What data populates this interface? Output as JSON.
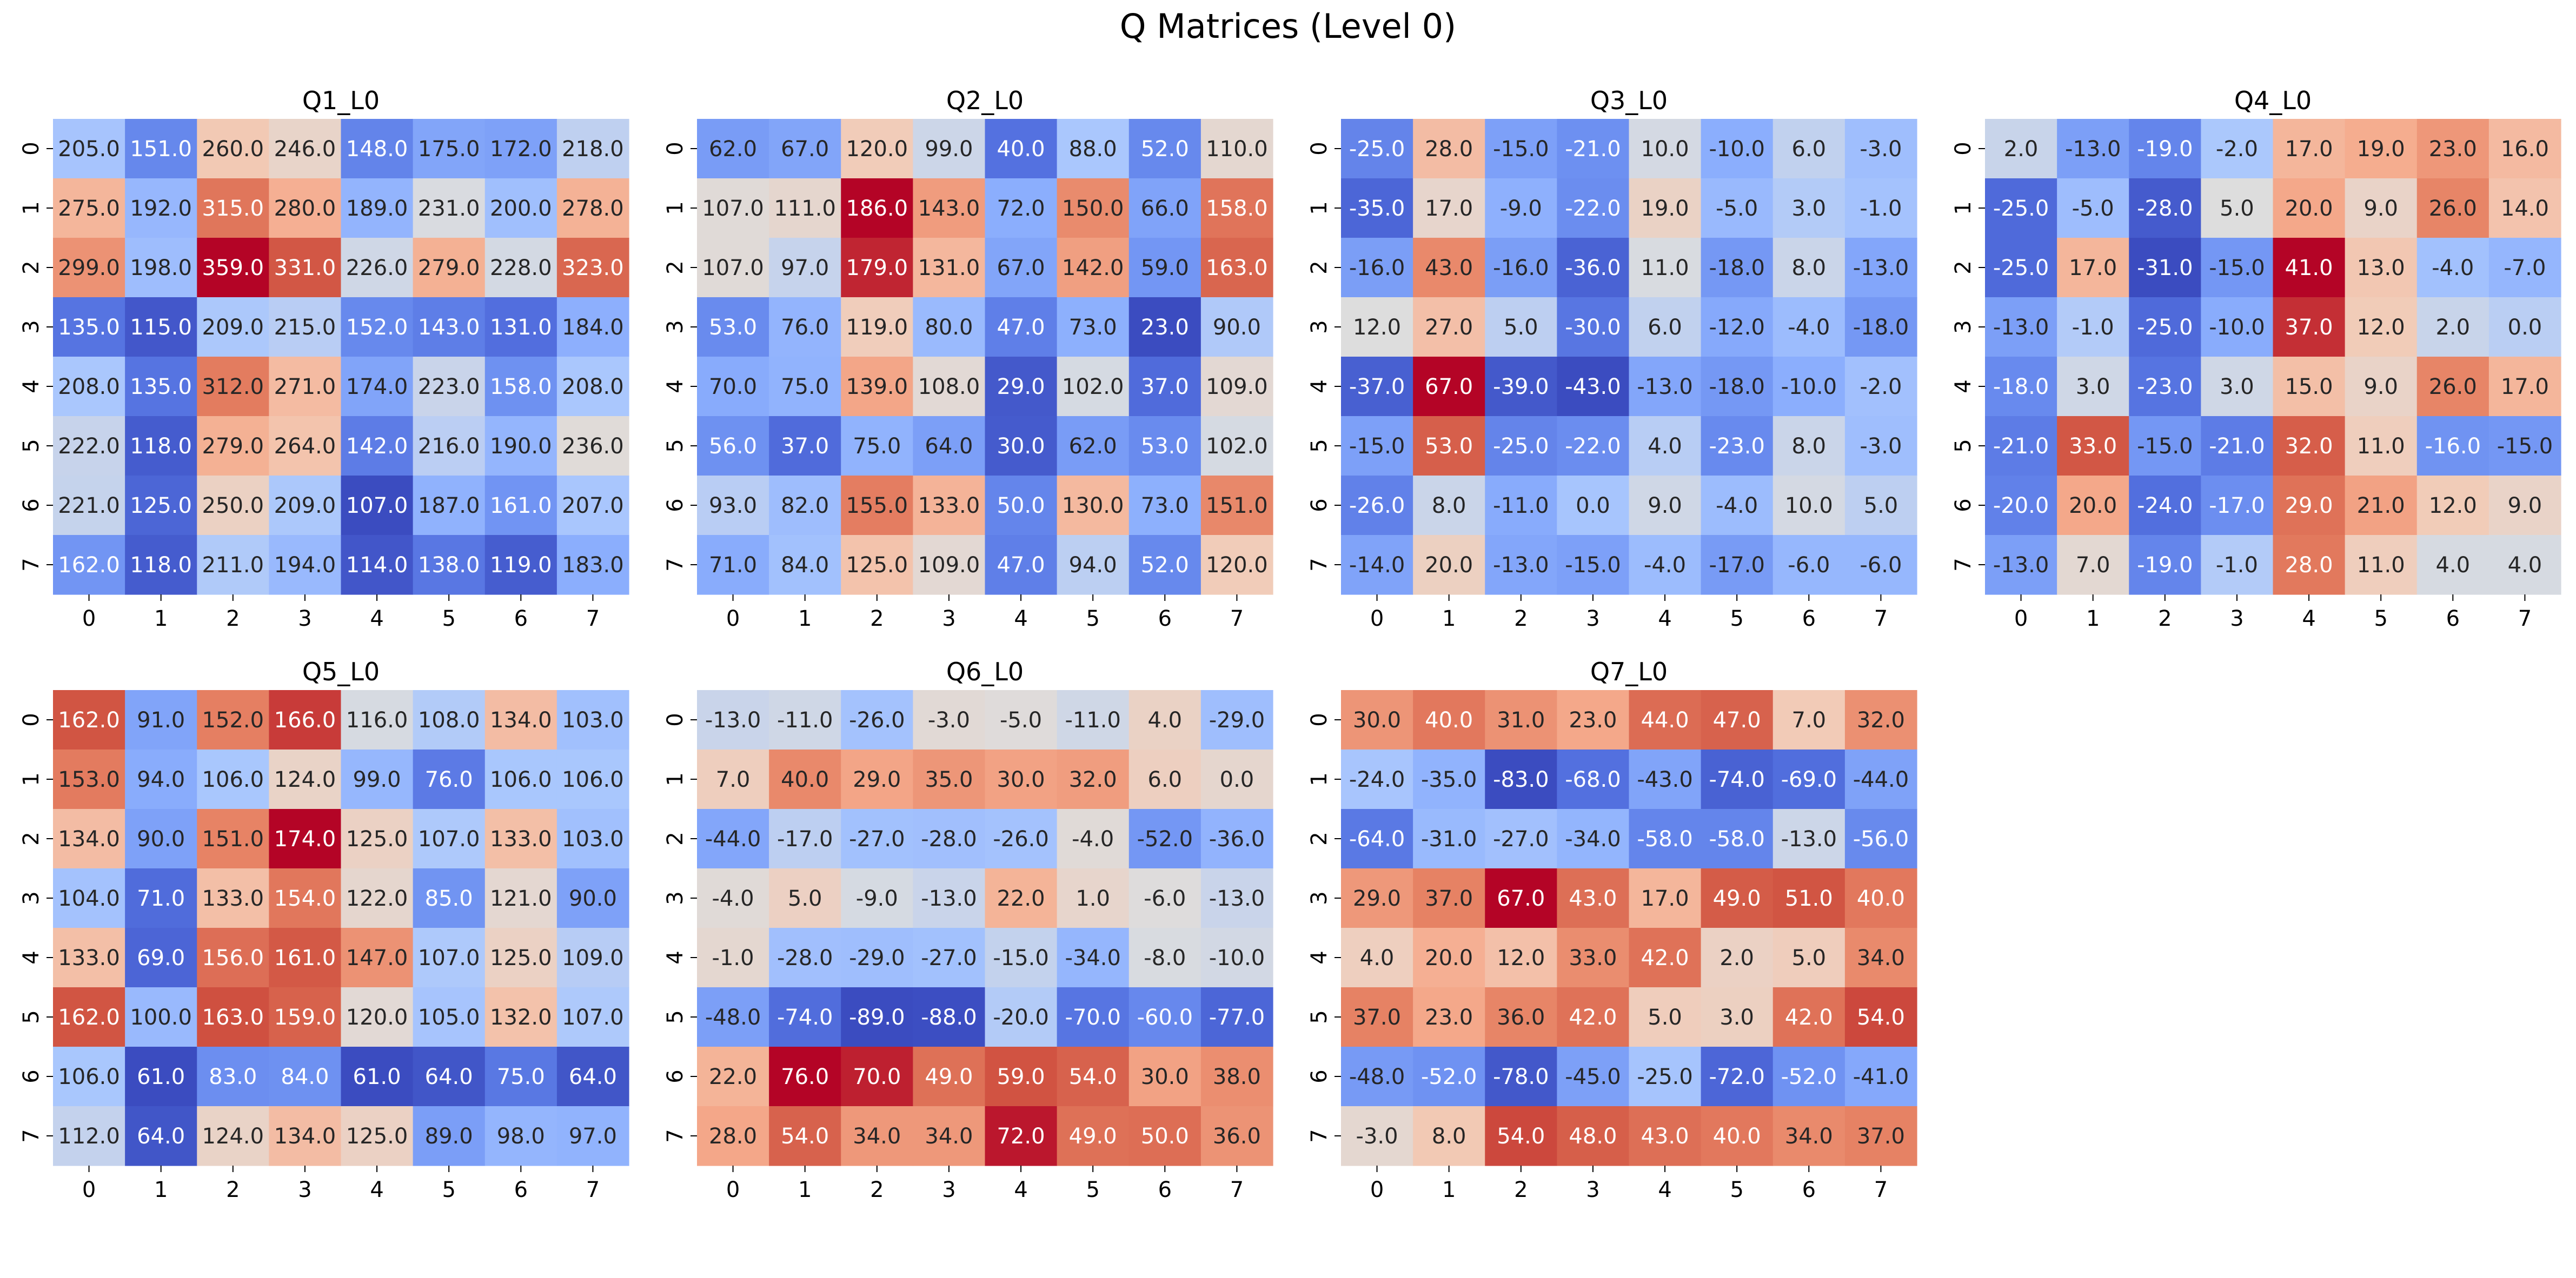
{
  "figure": {
    "title": "Q Matrices (Level 0)"
  },
  "chart_data": [
    {
      "type": "heatmap",
      "title": "Q1_L0",
      "colormap": "coolwarm",
      "x_ticks": [
        "0",
        "1",
        "2",
        "3",
        "4",
        "5",
        "6",
        "7"
      ],
      "y_ticks": [
        "0",
        "1",
        "2",
        "3",
        "4",
        "5",
        "6",
        "7"
      ],
      "values": [
        [
          205.0,
          151.0,
          260.0,
          246.0,
          148.0,
          175.0,
          172.0,
          218.0
        ],
        [
          275.0,
          192.0,
          315.0,
          280.0,
          189.0,
          231.0,
          200.0,
          278.0
        ],
        [
          299.0,
          198.0,
          359.0,
          331.0,
          226.0,
          279.0,
          228.0,
          323.0
        ],
        [
          135.0,
          115.0,
          209.0,
          215.0,
          152.0,
          143.0,
          131.0,
          184.0
        ],
        [
          208.0,
          135.0,
          312.0,
          271.0,
          174.0,
          223.0,
          158.0,
          208.0
        ],
        [
          222.0,
          118.0,
          279.0,
          264.0,
          142.0,
          216.0,
          190.0,
          236.0
        ],
        [
          221.0,
          125.0,
          250.0,
          209.0,
          107.0,
          187.0,
          161.0,
          207.0
        ],
        [
          162.0,
          118.0,
          211.0,
          194.0,
          114.0,
          138.0,
          119.0,
          183.0
        ]
      ]
    },
    {
      "type": "heatmap",
      "title": "Q2_L0",
      "colormap": "coolwarm",
      "x_ticks": [
        "0",
        "1",
        "2",
        "3",
        "4",
        "5",
        "6",
        "7"
      ],
      "y_ticks": [
        "0",
        "1",
        "2",
        "3",
        "4",
        "5",
        "6",
        "7"
      ],
      "values": [
        [
          62.0,
          67.0,
          120.0,
          99.0,
          40.0,
          88.0,
          52.0,
          110.0
        ],
        [
          107.0,
          111.0,
          186.0,
          143.0,
          72.0,
          150.0,
          66.0,
          158.0
        ],
        [
          107.0,
          97.0,
          179.0,
          131.0,
          67.0,
          142.0,
          59.0,
          163.0
        ],
        [
          53.0,
          76.0,
          119.0,
          80.0,
          47.0,
          73.0,
          23.0,
          90.0
        ],
        [
          70.0,
          75.0,
          139.0,
          108.0,
          29.0,
          102.0,
          37.0,
          109.0
        ],
        [
          56.0,
          37.0,
          75.0,
          64.0,
          30.0,
          62.0,
          53.0,
          102.0
        ],
        [
          93.0,
          82.0,
          155.0,
          133.0,
          50.0,
          130.0,
          73.0,
          151.0
        ],
        [
          71.0,
          84.0,
          125.0,
          109.0,
          47.0,
          94.0,
          52.0,
          120.0
        ]
      ]
    },
    {
      "type": "heatmap",
      "title": "Q3_L0",
      "colormap": "coolwarm",
      "x_ticks": [
        "0",
        "1",
        "2",
        "3",
        "4",
        "5",
        "6",
        "7"
      ],
      "y_ticks": [
        "0",
        "1",
        "2",
        "3",
        "4",
        "5",
        "6",
        "7"
      ],
      "values": [
        [
          -25.0,
          28.0,
          -15.0,
          -21.0,
          10.0,
          -10.0,
          6.0,
          -3.0
        ],
        [
          -35.0,
          17.0,
          -9.0,
          -22.0,
          19.0,
          -5.0,
          3.0,
          -1.0
        ],
        [
          -16.0,
          43.0,
          -16.0,
          -36.0,
          11.0,
          -18.0,
          8.0,
          -13.0
        ],
        [
          12.0,
          27.0,
          5.0,
          -30.0,
          6.0,
          -12.0,
          -4.0,
          -18.0
        ],
        [
          -37.0,
          67.0,
          -39.0,
          -43.0,
          -13.0,
          -18.0,
          -10.0,
          -2.0
        ],
        [
          -15.0,
          53.0,
          -25.0,
          -22.0,
          4.0,
          -23.0,
          8.0,
          -3.0
        ],
        [
          -26.0,
          8.0,
          -11.0,
          0.0,
          9.0,
          -4.0,
          10.0,
          5.0
        ],
        [
          -14.0,
          20.0,
          -13.0,
          -15.0,
          -4.0,
          -17.0,
          -6.0,
          -6.0
        ]
      ]
    },
    {
      "type": "heatmap",
      "title": "Q4_L0",
      "colormap": "coolwarm",
      "x_ticks": [
        "0",
        "1",
        "2",
        "3",
        "4",
        "5",
        "6",
        "7"
      ],
      "y_ticks": [
        "0",
        "1",
        "2",
        "3",
        "4",
        "5",
        "6",
        "7"
      ],
      "values": [
        [
          2.0,
          -13.0,
          -19.0,
          -2.0,
          17.0,
          19.0,
          23.0,
          16.0
        ],
        [
          -25.0,
          -5.0,
          -28.0,
          5.0,
          20.0,
          9.0,
          26.0,
          14.0
        ],
        [
          -25.0,
          17.0,
          -31.0,
          -15.0,
          41.0,
          13.0,
          -4.0,
          -7.0
        ],
        [
          -13.0,
          -1.0,
          -25.0,
          -10.0,
          37.0,
          12.0,
          2.0,
          0.0
        ],
        [
          -18.0,
          3.0,
          -23.0,
          3.0,
          15.0,
          9.0,
          26.0,
          17.0
        ],
        [
          -21.0,
          33.0,
          -15.0,
          -21.0,
          32.0,
          11.0,
          -16.0,
          -15.0
        ],
        [
          -20.0,
          20.0,
          -24.0,
          -17.0,
          29.0,
          21.0,
          12.0,
          9.0
        ],
        [
          -13.0,
          7.0,
          -19.0,
          -1.0,
          28.0,
          11.0,
          4.0,
          4.0
        ]
      ]
    },
    {
      "type": "heatmap",
      "title": "Q5_L0",
      "colormap": "coolwarm",
      "x_ticks": [
        "0",
        "1",
        "2",
        "3",
        "4",
        "5",
        "6",
        "7"
      ],
      "y_ticks": [
        "0",
        "1",
        "2",
        "3",
        "4",
        "5",
        "6",
        "7"
      ],
      "values": [
        [
          162.0,
          91.0,
          152.0,
          166.0,
          116.0,
          108.0,
          134.0,
          103.0
        ],
        [
          153.0,
          94.0,
          106.0,
          124.0,
          99.0,
          76.0,
          106.0,
          106.0
        ],
        [
          134.0,
          90.0,
          151.0,
          174.0,
          125.0,
          107.0,
          133.0,
          103.0
        ],
        [
          104.0,
          71.0,
          133.0,
          154.0,
          122.0,
          85.0,
          121.0,
          90.0
        ],
        [
          133.0,
          69.0,
          156.0,
          161.0,
          147.0,
          107.0,
          125.0,
          109.0
        ],
        [
          162.0,
          100.0,
          163.0,
          159.0,
          120.0,
          105.0,
          132.0,
          107.0
        ],
        [
          106.0,
          61.0,
          83.0,
          84.0,
          61.0,
          64.0,
          75.0,
          64.0
        ],
        [
          112.0,
          64.0,
          124.0,
          134.0,
          125.0,
          89.0,
          98.0,
          97.0
        ]
      ]
    },
    {
      "type": "heatmap",
      "title": "Q6_L0",
      "colormap": "coolwarm",
      "x_ticks": [
        "0",
        "1",
        "2",
        "3",
        "4",
        "5",
        "6",
        "7"
      ],
      "y_ticks": [
        "0",
        "1",
        "2",
        "3",
        "4",
        "5",
        "6",
        "7"
      ],
      "values": [
        [
          -13.0,
          -11.0,
          -26.0,
          -3.0,
          -5.0,
          -11.0,
          4.0,
          -29.0
        ],
        [
          7.0,
          40.0,
          29.0,
          35.0,
          30.0,
          32.0,
          6.0,
          0.0
        ],
        [
          -44.0,
          -17.0,
          -27.0,
          -28.0,
          -26.0,
          -4.0,
          -52.0,
          -36.0
        ],
        [
          -4.0,
          5.0,
          -9.0,
          -13.0,
          22.0,
          1.0,
          -6.0,
          -13.0
        ],
        [
          -1.0,
          -28.0,
          -29.0,
          -27.0,
          -15.0,
          -34.0,
          -8.0,
          -10.0
        ],
        [
          -48.0,
          -74.0,
          -89.0,
          -88.0,
          -20.0,
          -70.0,
          -60.0,
          -77.0
        ],
        [
          22.0,
          76.0,
          70.0,
          49.0,
          59.0,
          54.0,
          30.0,
          38.0
        ],
        [
          28.0,
          54.0,
          34.0,
          34.0,
          72.0,
          49.0,
          50.0,
          36.0
        ]
      ]
    },
    {
      "type": "heatmap",
      "title": "Q7_L0",
      "colormap": "coolwarm",
      "x_ticks": [
        "0",
        "1",
        "2",
        "3",
        "4",
        "5",
        "6",
        "7"
      ],
      "y_ticks": [
        "0",
        "1",
        "2",
        "3",
        "4",
        "5",
        "6",
        "7"
      ],
      "values": [
        [
          30.0,
          40.0,
          31.0,
          23.0,
          44.0,
          47.0,
          7.0,
          32.0
        ],
        [
          -24.0,
          -35.0,
          -83.0,
          -68.0,
          -43.0,
          -74.0,
          -69.0,
          -44.0
        ],
        [
          -64.0,
          -31.0,
          -27.0,
          -34.0,
          -58.0,
          -58.0,
          -13.0,
          -56.0
        ],
        [
          29.0,
          37.0,
          67.0,
          43.0,
          17.0,
          49.0,
          51.0,
          40.0
        ],
        [
          4.0,
          20.0,
          12.0,
          33.0,
          42.0,
          2.0,
          5.0,
          34.0
        ],
        [
          37.0,
          23.0,
          36.0,
          42.0,
          5.0,
          3.0,
          42.0,
          54.0
        ],
        [
          -48.0,
          -52.0,
          -78.0,
          -45.0,
          -25.0,
          -72.0,
          -52.0,
          -41.0
        ],
        [
          -3.0,
          8.0,
          54.0,
          48.0,
          43.0,
          40.0,
          34.0,
          37.0
        ]
      ]
    }
  ]
}
